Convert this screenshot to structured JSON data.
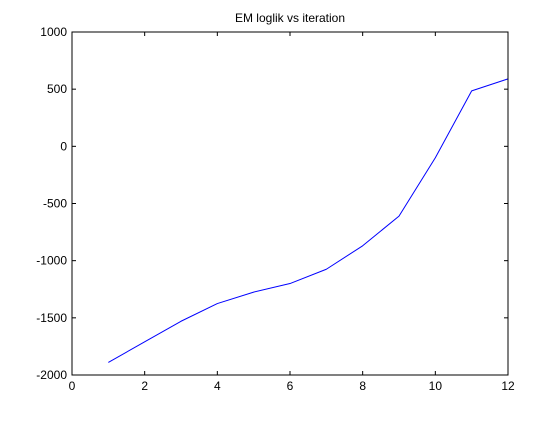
{
  "chart_data": {
    "type": "line",
    "title": "EM loglik vs iteration",
    "xlabel": "",
    "ylabel": "",
    "xlim": [
      0,
      12
    ],
    "ylim": [
      -2000,
      1000
    ],
    "xticks": [
      0,
      2,
      4,
      6,
      8,
      10,
      12
    ],
    "yticks": [
      -2000,
      -1500,
      -1000,
      -500,
      0,
      500,
      1000
    ],
    "xtick_labels": [
      "0",
      "2",
      "4",
      "6",
      "8",
      "10",
      "12"
    ],
    "ytick_labels": [
      "-2000",
      "-1500",
      "-1000",
      "-500",
      "0",
      "500",
      "1000"
    ],
    "grid": false,
    "legend": "none",
    "series": [
      {
        "color": "#0000ff",
        "x": [
          1,
          2,
          3,
          4,
          5,
          6,
          7,
          8,
          9,
          10,
          11,
          12
        ],
        "y": [
          -1890,
          -1710,
          -1530,
          -1375,
          -1275,
          -1200,
          -1075,
          -870,
          -610,
          -100,
          485,
          590
        ]
      }
    ]
  }
}
